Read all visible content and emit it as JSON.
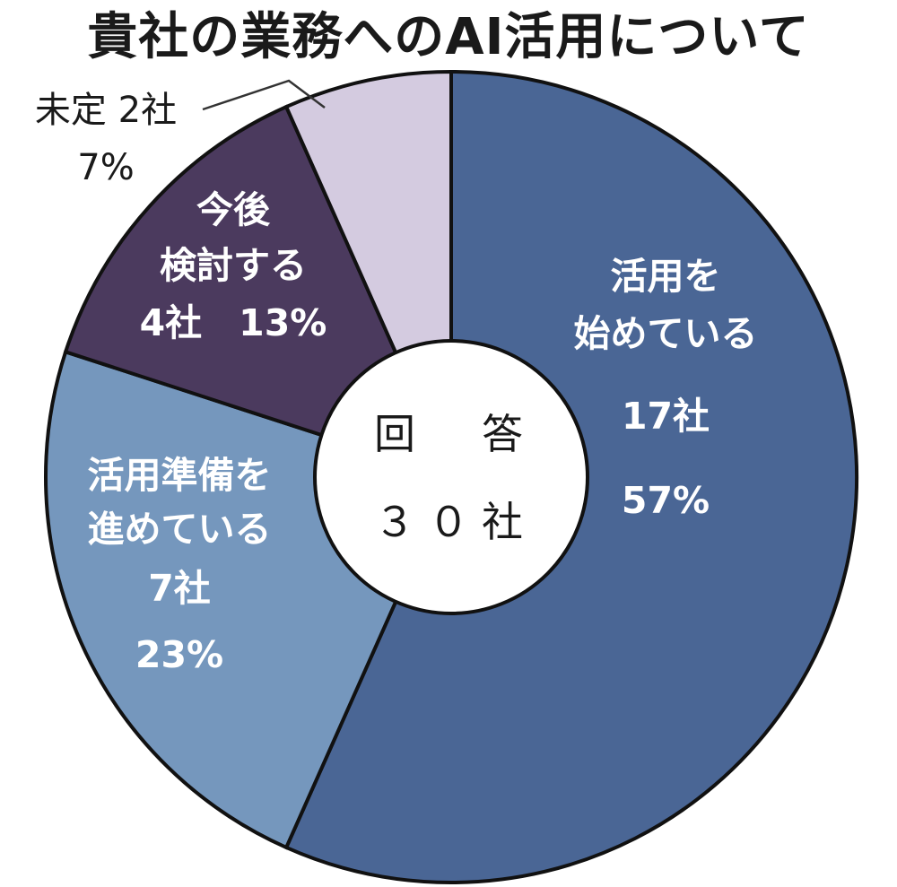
{
  "title": "貴社の業務へのAI活用について",
  "chart_data": {
    "type": "pie",
    "title": "貴社の業務へのAI活用について",
    "center_label": [
      "回　答",
      "３０社"
    ],
    "total": 30,
    "unit": "社",
    "slices": [
      {
        "label_lines": [
          "活用を",
          "始めている"
        ],
        "count": 17,
        "count_text": "17社",
        "percent": 57,
        "percent_text": "57%",
        "color": "#4a6695"
      },
      {
        "label_lines": [
          "活用準備を",
          "進めている"
        ],
        "count": 7,
        "count_text": "7社",
        "percent": 23,
        "percent_text": "23%",
        "color": "#7597bd"
      },
      {
        "label_lines": [
          "今後",
          "検討する"
        ],
        "count": 4,
        "count_text": "4社",
        "percent": 13,
        "percent_text": "13%",
        "color": "#4b3a5e"
      },
      {
        "label_lines": [
          "未定"
        ],
        "count": 2,
        "count_text": "2社",
        "percent": 7,
        "percent_text": "7%",
        "color": "#d4cbe0"
      }
    ],
    "legend": "none"
  }
}
